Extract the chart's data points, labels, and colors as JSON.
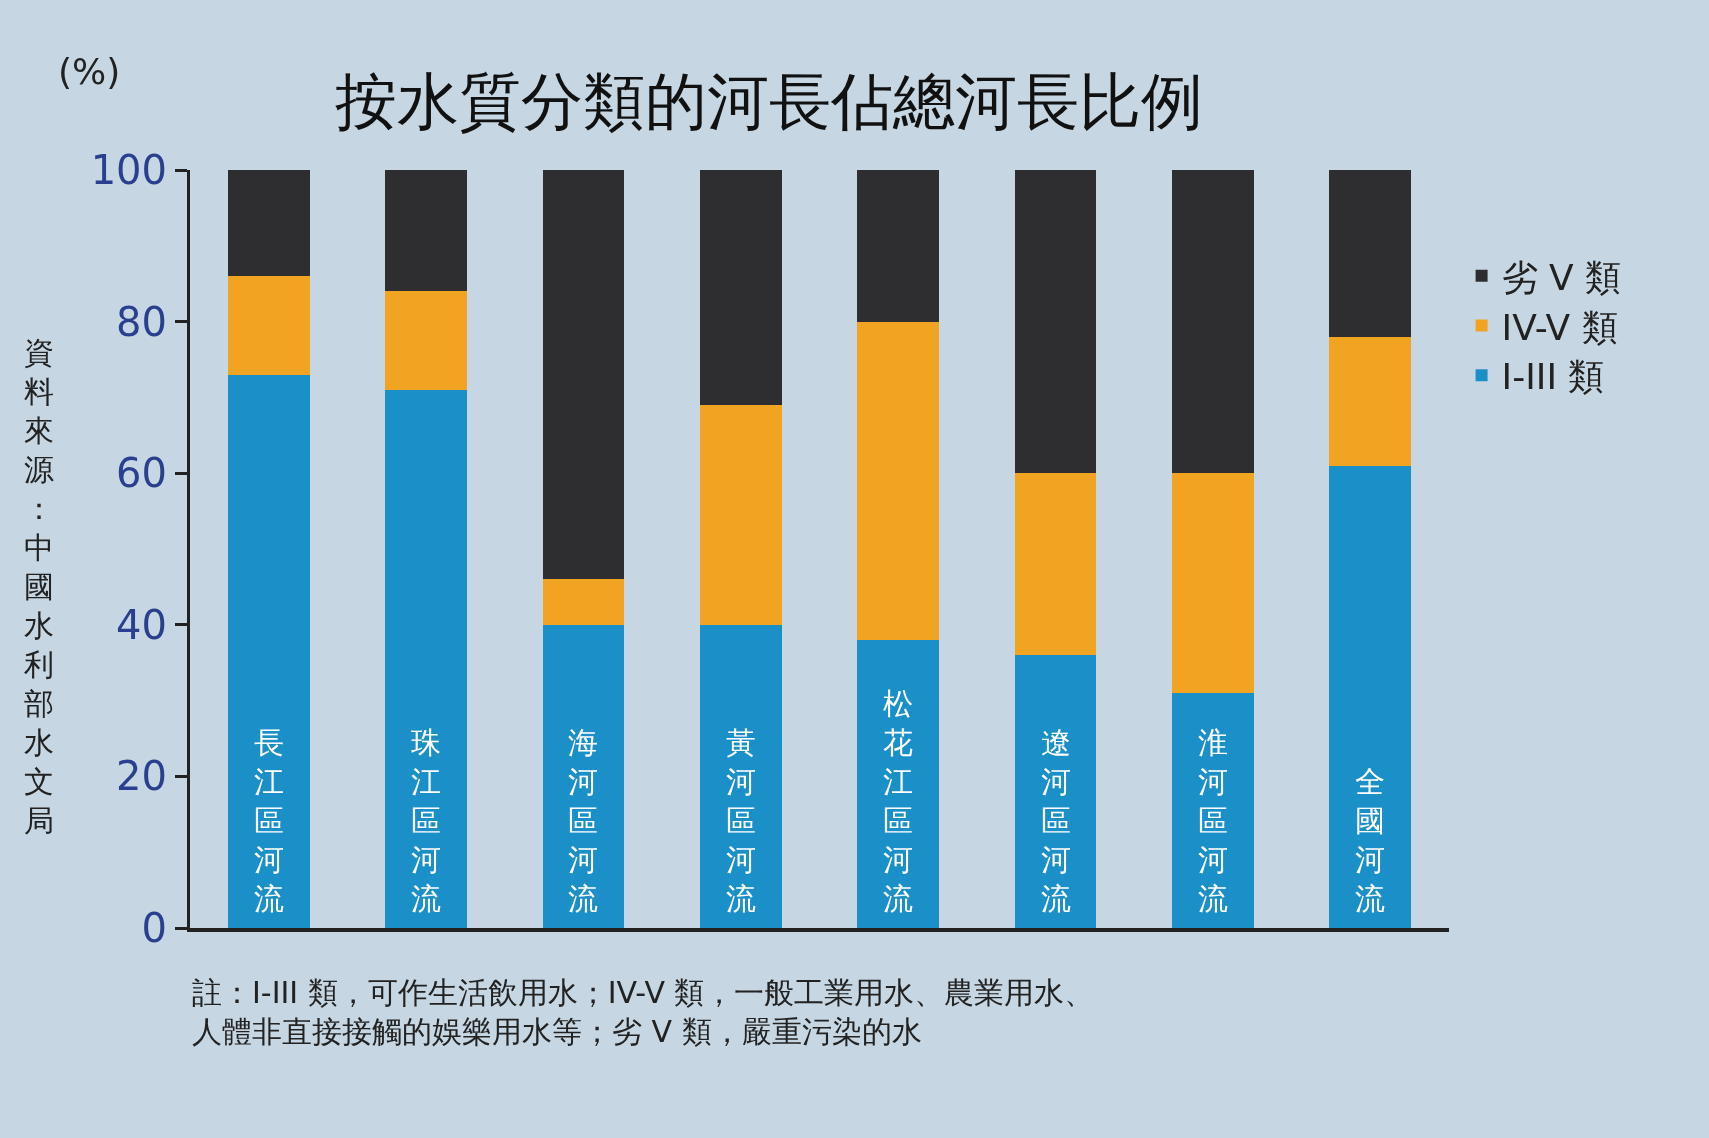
{
  "chart_data": {
    "type": "bar",
    "title": "按水質分類的河長佔總河長比例",
    "ylabel": "(%)",
    "categories": [
      "長江區河流",
      "珠江區河流",
      "海河區河流",
      "黃河區河流",
      "松花江區河流",
      "遼河區河流",
      "淮河區河流",
      "全國河流"
    ],
    "stacked": true,
    "series": [
      {
        "name": "I-III 類",
        "color": "#1a8fc8",
        "values": [
          73,
          71,
          40,
          40,
          38,
          36,
          31,
          61
        ]
      },
      {
        "name": "IV-V 類",
        "color": "#f0a422",
        "values": [
          13,
          13,
          6,
          29,
          42,
          24,
          29,
          17
        ]
      },
      {
        "name": "劣 V 類",
        "color": "#2e2e30",
        "values": [
          14,
          16,
          54,
          31,
          20,
          40,
          40,
          22
        ]
      }
    ],
    "ylim": [
      0,
      100
    ],
    "yticks": [
      0,
      20,
      40,
      60,
      80,
      100
    ],
    "grid": false,
    "legend": "right",
    "tick_labels": "y",
    "annotations": [
      "資料來源：中國水利部水文局",
      "註：I-III 類，可作生活飲用水；IV-V 類，一般工業用水、農業用水、人體非直接接觸的娛樂用水等；劣 V 類，嚴重污染的水"
    ]
  }
}
